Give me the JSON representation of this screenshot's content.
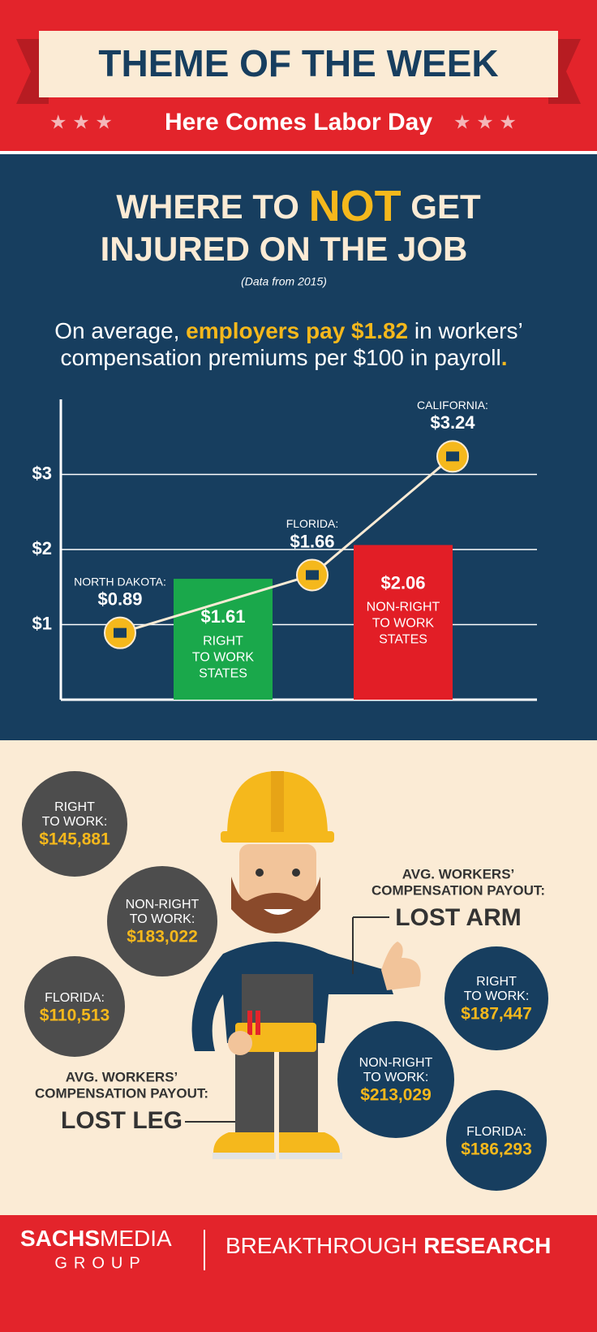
{
  "header": {
    "title": "THEME OF THE WEEK",
    "subtitle": "Here Comes Labor Day"
  },
  "headline": {
    "before": "WHERE TO",
    "highlight": "NOT",
    "after": "GET",
    "line2": "INJURED ON THE JOB",
    "note": "(Data from 2015)"
  },
  "summary": {
    "line1": [
      "On average,",
      "employers pay $1.82",
      "in workers’"
    ],
    "line2": [
      "compensation premiums per $100 in payroll",
      "."
    ]
  },
  "chart_data": {
    "type": "bar_line",
    "ylim": [
      0,
      4
    ],
    "yticks": [
      {
        "value": 1,
        "label": "$1"
      },
      {
        "value": 2,
        "label": "$2"
      },
      {
        "value": 3,
        "label": "$3"
      }
    ],
    "grid": true,
    "bars": {
      "categories": [
        [
          "RIGHT",
          "TO WORK",
          "STATES"
        ],
        [
          "NON-RIGHT",
          "TO WORK",
          "STATES"
        ]
      ],
      "values": [
        1.61,
        2.06
      ],
      "value_labels": [
        "$1.61",
        "$2.06"
      ],
      "colors": [
        "#1aa84b",
        "#e21e26"
      ]
    },
    "line": {
      "categories": [
        "NORTH DAKOTA:",
        "FLORIDA:",
        "CALIFORNIA:"
      ],
      "values": [
        0.89,
        1.66,
        3.24
      ],
      "value_labels": [
        "$0.89",
        "$1.66",
        "$3.24"
      ],
      "color": "#f5b81c"
    }
  },
  "lost_arm": {
    "caption": [
      "AVG. WORKERS’",
      "COMPENSATION PAYOUT:"
    ],
    "heading": "LOST ARM",
    "items": [
      {
        "label": [
          "RIGHT",
          "TO WORK:"
        ],
        "amount": "$187,447"
      },
      {
        "label": [
          "NON-RIGHT",
          "TO WORK:"
        ],
        "amount": "$213,029"
      },
      {
        "label": [
          "FLORIDA:"
        ],
        "amount": "$186,293"
      }
    ]
  },
  "lost_leg": {
    "caption": [
      "AVG. WORKERS’",
      "COMPENSATION PAYOUT:"
    ],
    "heading": "LOST LEG",
    "items": [
      {
        "label": [
          "RIGHT",
          "TO WORK:"
        ],
        "amount": "$145,881"
      },
      {
        "label": [
          "NON-RIGHT",
          "TO WORK:"
        ],
        "amount": "$183,022"
      },
      {
        "label": [
          "FLORIDA:"
        ],
        "amount": "$110,513"
      }
    ]
  },
  "footer": {
    "brand_bold": "SACHS",
    "brand": "MEDIA",
    "group": "GROUP",
    "tag": "BREAKTHROUGH",
    "tag_bold": "RESEARCH"
  }
}
